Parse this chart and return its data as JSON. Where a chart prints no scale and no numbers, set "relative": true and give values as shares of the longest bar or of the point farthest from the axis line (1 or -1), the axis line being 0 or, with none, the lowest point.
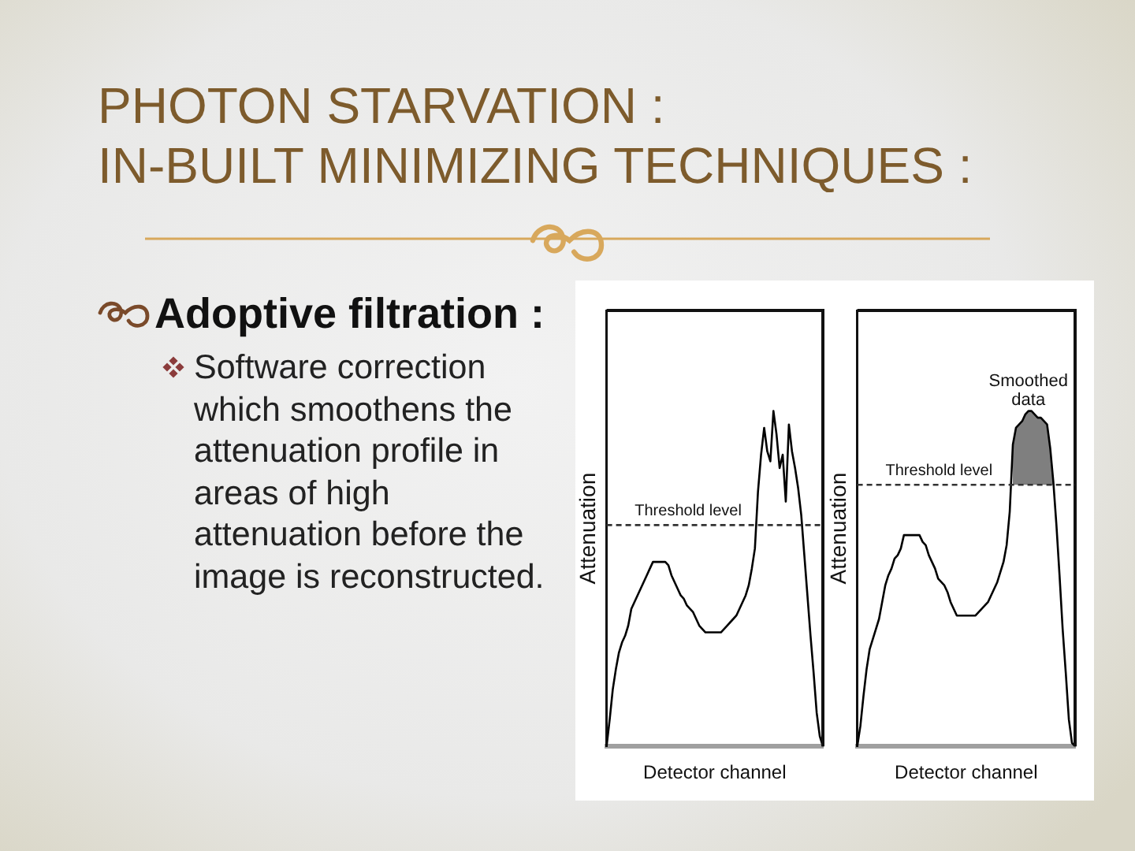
{
  "chart_data": [
    {
      "type": "other",
      "title": "PHOTON STARVATION :",
      "subtitle": "IN-BUILT MINIMIZING TECHNIQUES :",
      "annotations": [
        "Adoptive filtration :",
        "Software correction which smoothens the attenuation profile in areas of high attenuation before the image is reconstructed."
      ]
    },
    {
      "type": "line",
      "relative": true,
      "xlabel": "Detector channel",
      "ylabel": "Attenuation",
      "categories": [
        null,
        null,
        null,
        null,
        null,
        null,
        null,
        null,
        null,
        null,
        null,
        null,
        null,
        null,
        null,
        null,
        null,
        null,
        null,
        null,
        null,
        null,
        null,
        null,
        null,
        null,
        null,
        null,
        null,
        null,
        null,
        null,
        null,
        null,
        null,
        null,
        null,
        null,
        null,
        null,
        null,
        null,
        null,
        null,
        null,
        null,
        null,
        null,
        null,
        null,
        null,
        null,
        null,
        null,
        null,
        null,
        null,
        null,
        null,
        null,
        null,
        null,
        null,
        null,
        null,
        null,
        null,
        null,
        null,
        null,
        null
      ],
      "series": [
        {
          "color": "#000000",
          "values": [
            0,
            0.08,
            0.17,
            0.23,
            0.28,
            0.31,
            0.33,
            0.36,
            0.41,
            0.43,
            0.45,
            0.47,
            0.49,
            0.51,
            0.53,
            0.55,
            0.55,
            0.55,
            0.55,
            0.55,
            0.54,
            0.51,
            0.49,
            0.47,
            0.45,
            0.44,
            0.42,
            0.41,
            0.4,
            0.38,
            0.36,
            0.35,
            0.34,
            0.34,
            0.34,
            0.34,
            0.34,
            0.34,
            0.35,
            0.36,
            0.37,
            0.38,
            0.39,
            0.41,
            0.43,
            0.45,
            0.48,
            0.53,
            0.59,
            0.76,
            0.87,
            0.95,
            0.88,
            0.85,
            1,
            0.93,
            0.83,
            0.87,
            0.73,
            0.96,
            0.88,
            0.83,
            0.77,
            0.69,
            0.57,
            0.45,
            0.33,
            0.22,
            0.1,
            0.03,
            0
          ]
        }
      ],
      "ref_lines": [
        {
          "axis": "y",
          "value": 0.66,
          "label": "Threshold level",
          "line_style": "dashed",
          "color": "#333333"
        }
      ]
    },
    {
      "type": "line",
      "relative": true,
      "xlabel": "Detector channel",
      "ylabel": "Attenuation",
      "categories": [
        null,
        null,
        null,
        null,
        null,
        null,
        null,
        null,
        null,
        null,
        null,
        null,
        null,
        null,
        null,
        null,
        null,
        null,
        null,
        null,
        null,
        null,
        null,
        null,
        null,
        null,
        null,
        null,
        null,
        null,
        null,
        null,
        null,
        null,
        null,
        null,
        null,
        null,
        null,
        null,
        null,
        null,
        null,
        null,
        null,
        null,
        null,
        null,
        null,
        null,
        null,
        null,
        null,
        null,
        null,
        null,
        null,
        null,
        null,
        null,
        null,
        null,
        null,
        null,
        null,
        null,
        null,
        null,
        null,
        null,
        null
      ],
      "series": [
        {
          "color": "#000000",
          "values": [
            0,
            0.06,
            0.15,
            0.23,
            0.29,
            0.32,
            0.35,
            0.38,
            0.43,
            0.48,
            0.51,
            0.53,
            0.56,
            0.57,
            0.59,
            0.63,
            0.63,
            0.63,
            0.63,
            0.63,
            0.63,
            0.61,
            0.6,
            0.57,
            0.55,
            0.53,
            0.5,
            0.49,
            0.48,
            0.46,
            0.43,
            0.41,
            0.39,
            0.39,
            0.39,
            0.39,
            0.39,
            0.39,
            0.39,
            0.4,
            0.41,
            0.42,
            0.43,
            0.45,
            0.47,
            0.49,
            0.52,
            0.55,
            0.6,
            0.7,
            0.9,
            0.95,
            0.96,
            0.97,
            0.99,
            1,
            1,
            0.99,
            0.98,
            0.98,
            0.97,
            0.96,
            0.89,
            0.79,
            0.66,
            0.51,
            0.35,
            0.22,
            0.08,
            0.01,
            0
          ],
          "lower": [
            null,
            null,
            null,
            null,
            null,
            null,
            null,
            null,
            null,
            null,
            null,
            null,
            null,
            null,
            null,
            null,
            null,
            null,
            null,
            null,
            null,
            null,
            null,
            null,
            null,
            null,
            null,
            null,
            null,
            null,
            null,
            null,
            null,
            null,
            null,
            null,
            null,
            null,
            null,
            null,
            null,
            null,
            null,
            null,
            null,
            null,
            null,
            null,
            null,
            null,
            0.78,
            0.78,
            0.78,
            0.78,
            0.78,
            0.78,
            0.78,
            0.78,
            0.78,
            0.78,
            0.78,
            0.78,
            0.78,
            0.78,
            null,
            null,
            null,
            null,
            null,
            null,
            null
          ],
          "upper": [
            null,
            null,
            null,
            null,
            null,
            null,
            null,
            null,
            null,
            null,
            null,
            null,
            null,
            null,
            null,
            null,
            null,
            null,
            null,
            null,
            null,
            null,
            null,
            null,
            null,
            null,
            null,
            null,
            null,
            null,
            null,
            null,
            null,
            null,
            null,
            null,
            null,
            null,
            null,
            null,
            null,
            null,
            null,
            null,
            null,
            null,
            null,
            null,
            null,
            null,
            0.9,
            0.95,
            0.96,
            0.97,
            0.99,
            1,
            1,
            0.99,
            0.98,
            0.98,
            0.97,
            0.96,
            0.89,
            0.79,
            null,
            null,
            null,
            null,
            null,
            null,
            null
          ]
        }
      ],
      "ref_lines": [
        {
          "axis": "y",
          "value": 0.78,
          "label": "Threshold level",
          "line_style": "dashed",
          "color": "#333333"
        }
      ],
      "annotations": [
        {
          "text": "Smoothed data",
          "y": 1
        }
      ]
    }
  ]
}
